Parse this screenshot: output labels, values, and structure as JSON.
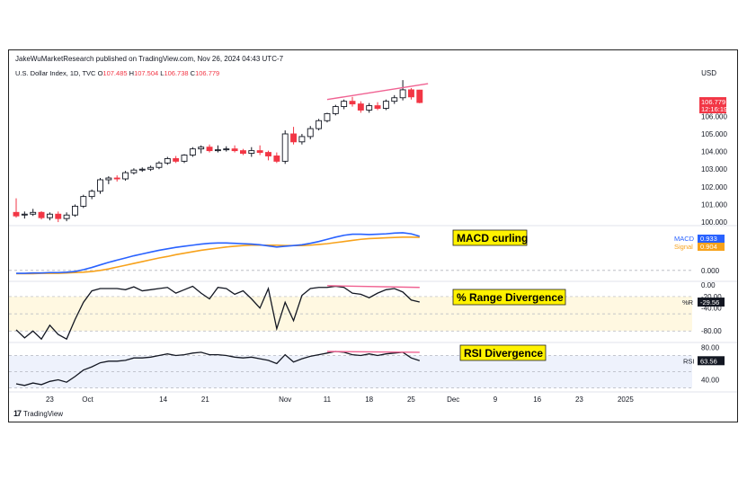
{
  "header": {
    "publisher": "JakeWuMarketResearch published on TradingView.com, Nov 26, 2024 04:43 UTC-7",
    "symbol_name": "U.S. Dollar Index, 1D, TVC",
    "ohlc": {
      "open_label": "O",
      "open": "107.485",
      "high_label": "H",
      "high": "107.504",
      "low_label": "L",
      "low": "106.738",
      "close_label": "C",
      "close": "106.779"
    },
    "currency": "USD"
  },
  "footer": {
    "brand": "TradingView",
    "logo": "tradingview-logo"
  },
  "colors": {
    "up": "#131722",
    "down": "#f23645",
    "macd": "#2962ff",
    "signal": "#f7a21b",
    "divergence": "#f06292",
    "range_band": "#fff8e1",
    "rsi_band": "#eef2fc",
    "annotation_bg": "#fff200"
  },
  "chart_data": [
    {
      "type": "candlestick",
      "title": "U.S. Dollar Index, 1D, TVC",
      "y_ticks": [
        "100.000",
        "101.000",
        "102.000",
        "103.000",
        "104.000",
        "105.000",
        "106.000"
      ],
      "ylim": [
        99.8,
        107.7
      ],
      "x_ticks": [
        "23",
        "Oct",
        "14",
        "21",
        "Nov",
        "11",
        "18",
        "25",
        "Dec",
        "9",
        "16",
        "23",
        "2025"
      ],
      "price_badge": {
        "value": "106.779",
        "countdown": "12:16:19"
      },
      "candles": [
        {
          "o": 100.55,
          "h": 101.35,
          "l": 100.25,
          "c": 100.35
        },
        {
          "o": 100.4,
          "h": 100.6,
          "l": 100.2,
          "c": 100.45
        },
        {
          "o": 100.45,
          "h": 100.75,
          "l": 100.35,
          "c": 100.55
        },
        {
          "o": 100.55,
          "h": 100.62,
          "l": 100.15,
          "c": 100.25
        },
        {
          "o": 100.25,
          "h": 100.55,
          "l": 100.1,
          "c": 100.45
        },
        {
          "o": 100.45,
          "h": 100.6,
          "l": 100.0,
          "c": 100.2
        },
        {
          "o": 100.2,
          "h": 100.55,
          "l": 100.05,
          "c": 100.4
        },
        {
          "o": 100.4,
          "h": 101.0,
          "l": 100.3,
          "c": 100.9
        },
        {
          "o": 100.9,
          "h": 101.55,
          "l": 100.8,
          "c": 101.45
        },
        {
          "o": 101.45,
          "h": 101.85,
          "l": 101.3,
          "c": 101.75
        },
        {
          "o": 101.75,
          "h": 102.5,
          "l": 101.6,
          "c": 102.4
        },
        {
          "o": 102.4,
          "h": 102.6,
          "l": 102.15,
          "c": 102.5
        },
        {
          "o": 102.5,
          "h": 102.65,
          "l": 102.3,
          "c": 102.45
        },
        {
          "o": 102.45,
          "h": 102.9,
          "l": 102.35,
          "c": 102.8
        },
        {
          "o": 102.8,
          "h": 103.05,
          "l": 102.7,
          "c": 102.95
        },
        {
          "o": 102.95,
          "h": 103.1,
          "l": 102.85,
          "c": 103.0
        },
        {
          "o": 103.0,
          "h": 103.2,
          "l": 102.9,
          "c": 103.1
        },
        {
          "o": 103.1,
          "h": 103.45,
          "l": 103.0,
          "c": 103.35
        },
        {
          "o": 103.35,
          "h": 103.7,
          "l": 103.25,
          "c": 103.6
        },
        {
          "o": 103.6,
          "h": 103.75,
          "l": 103.35,
          "c": 103.45
        },
        {
          "o": 103.45,
          "h": 103.85,
          "l": 103.35,
          "c": 103.8
        },
        {
          "o": 103.8,
          "h": 104.25,
          "l": 103.7,
          "c": 104.15
        },
        {
          "o": 104.15,
          "h": 104.35,
          "l": 103.9,
          "c": 104.25
        },
        {
          "o": 104.25,
          "h": 104.4,
          "l": 103.95,
          "c": 104.05
        },
        {
          "o": 104.05,
          "h": 104.35,
          "l": 103.95,
          "c": 104.1
        },
        {
          "o": 104.1,
          "h": 104.3,
          "l": 104.0,
          "c": 104.15
        },
        {
          "o": 104.15,
          "h": 104.35,
          "l": 103.95,
          "c": 104.05
        },
        {
          "o": 104.05,
          "h": 104.15,
          "l": 103.8,
          "c": 103.9
        },
        {
          "o": 103.9,
          "h": 104.25,
          "l": 103.7,
          "c": 104.05
        },
        {
          "o": 104.05,
          "h": 104.35,
          "l": 103.8,
          "c": 103.95
        },
        {
          "o": 103.95,
          "h": 104.05,
          "l": 103.5,
          "c": 103.75
        },
        {
          "o": 103.75,
          "h": 103.95,
          "l": 103.35,
          "c": 103.45
        },
        {
          "o": 103.45,
          "h": 105.2,
          "l": 103.3,
          "c": 105.0
        },
        {
          "o": 105.0,
          "h": 105.4,
          "l": 104.4,
          "c": 104.55
        },
        {
          "o": 104.55,
          "h": 105.0,
          "l": 104.4,
          "c": 104.85
        },
        {
          "o": 104.85,
          "h": 105.45,
          "l": 104.7,
          "c": 105.3
        },
        {
          "o": 105.3,
          "h": 105.85,
          "l": 105.2,
          "c": 105.75
        },
        {
          "o": 105.75,
          "h": 106.2,
          "l": 105.65,
          "c": 106.15
        },
        {
          "o": 106.15,
          "h": 106.65,
          "l": 106.05,
          "c": 106.55
        },
        {
          "o": 106.55,
          "h": 106.95,
          "l": 106.4,
          "c": 106.85
        },
        {
          "o": 106.85,
          "h": 107.1,
          "l": 106.55,
          "c": 106.7
        },
        {
          "o": 106.7,
          "h": 106.85,
          "l": 106.2,
          "c": 106.35
        },
        {
          "o": 106.35,
          "h": 106.75,
          "l": 106.2,
          "c": 106.6
        },
        {
          "o": 106.6,
          "h": 106.8,
          "l": 106.35,
          "c": 106.45
        },
        {
          "o": 106.45,
          "h": 106.95,
          "l": 106.35,
          "c": 106.85
        },
        {
          "o": 106.85,
          "h": 107.2,
          "l": 106.7,
          "c": 107.05
        },
        {
          "o": 107.05,
          "h": 108.05,
          "l": 106.9,
          "c": 107.5
        },
        {
          "o": 107.5,
          "h": 107.6,
          "l": 106.95,
          "c": 107.1
        },
        {
          "o": 107.485,
          "h": 107.504,
          "l": 106.738,
          "c": 106.779
        }
      ],
      "divergence_line": {
        "from": [
          37,
          106.95
        ],
        "to": [
          49,
          107.85
        ]
      }
    },
    {
      "type": "line",
      "title": "MACD",
      "annotation": "MACD curling",
      "y_ticks": [
        "0.000"
      ],
      "ylim": [
        -0.3,
        1.2
      ],
      "legend": [
        {
          "name": "MACD",
          "value": "0.933"
        },
        {
          "name": "Signal",
          "value": "0.904"
        }
      ],
      "series": [
        {
          "name": "MACD",
          "values": [
            -0.08,
            -0.08,
            -0.07,
            -0.07,
            -0.06,
            -0.06,
            -0.05,
            -0.03,
            0.02,
            0.08,
            0.15,
            0.22,
            0.28,
            0.34,
            0.4,
            0.45,
            0.5,
            0.55,
            0.59,
            0.63,
            0.66,
            0.69,
            0.72,
            0.74,
            0.75,
            0.75,
            0.74,
            0.73,
            0.72,
            0.7,
            0.67,
            0.64,
            0.66,
            0.68,
            0.7,
            0.74,
            0.79,
            0.85,
            0.91,
            0.96,
            0.99,
            0.99,
            0.98,
            0.99,
            1.0,
            1.02,
            1.03,
            1.0,
            0.933
          ]
        },
        {
          "name": "Signal",
          "values": [
            -0.09,
            -0.09,
            -0.09,
            -0.08,
            -0.08,
            -0.08,
            -0.07,
            -0.06,
            -0.05,
            -0.03,
            0.0,
            0.04,
            0.09,
            0.14,
            0.19,
            0.24,
            0.29,
            0.34,
            0.38,
            0.43,
            0.47,
            0.51,
            0.55,
            0.58,
            0.61,
            0.64,
            0.66,
            0.68,
            0.69,
            0.69,
            0.69,
            0.69,
            0.68,
            0.68,
            0.68,
            0.69,
            0.71,
            0.73,
            0.76,
            0.79,
            0.82,
            0.85,
            0.87,
            0.88,
            0.89,
            0.9,
            0.91,
            0.91,
            0.904
          ]
        }
      ]
    },
    {
      "type": "line",
      "title": "%R",
      "annotation": "% Range Divergence",
      "y_ticks": [
        "0.00",
        "-20.00",
        "-40.00",
        "-80.00"
      ],
      "ylim": [
        -100,
        5
      ],
      "band": [
        -80,
        -20
      ],
      "legend": [
        {
          "name": "%R",
          "value": "-29.56"
        }
      ],
      "series": [
        {
          "name": "%R",
          "values": [
            -78,
            -92,
            -80,
            -94,
            -70,
            -86,
            -94,
            -60,
            -30,
            -10,
            -6,
            -6,
            -6,
            -8,
            -3,
            -10,
            -8,
            -6,
            -4,
            -14,
            -8,
            -2,
            -14,
            -24,
            -4,
            -6,
            -16,
            -10,
            -24,
            -40,
            -6,
            -76,
            -30,
            -62,
            -18,
            -6,
            -4,
            -4,
            -2,
            -4,
            -14,
            -16,
            -22,
            -14,
            -8,
            -6,
            -12,
            -26,
            -29.56
          ]
        }
      ],
      "divergence_line": {
        "from": [
          37,
          -1
        ],
        "to": [
          48,
          -4
        ]
      }
    },
    {
      "type": "line",
      "title": "RSI",
      "annotation": "RSI Divergence",
      "y_ticks": [
        "80.00",
        "40.00"
      ],
      "ylim": [
        25,
        85
      ],
      "band": [
        30,
        70
      ],
      "legend": [
        {
          "name": "RSI",
          "value": "63.56"
        }
      ],
      "series": [
        {
          "name": "RSI",
          "values": [
            35,
            33,
            36,
            34,
            38,
            40,
            37,
            44,
            52,
            56,
            61,
            63,
            63,
            64,
            67,
            67,
            68,
            70,
            72,
            70,
            71,
            73,
            74,
            71,
            71,
            70,
            68,
            67,
            68,
            66,
            64,
            60,
            71,
            62,
            66,
            69,
            71,
            73,
            75,
            74,
            71,
            70,
            72,
            70,
            72,
            73,
            74,
            67,
            63.56
          ]
        }
      ],
      "divergence_line": {
        "from": [
          37,
          75
        ],
        "to": [
          48,
          74
        ]
      }
    }
  ]
}
